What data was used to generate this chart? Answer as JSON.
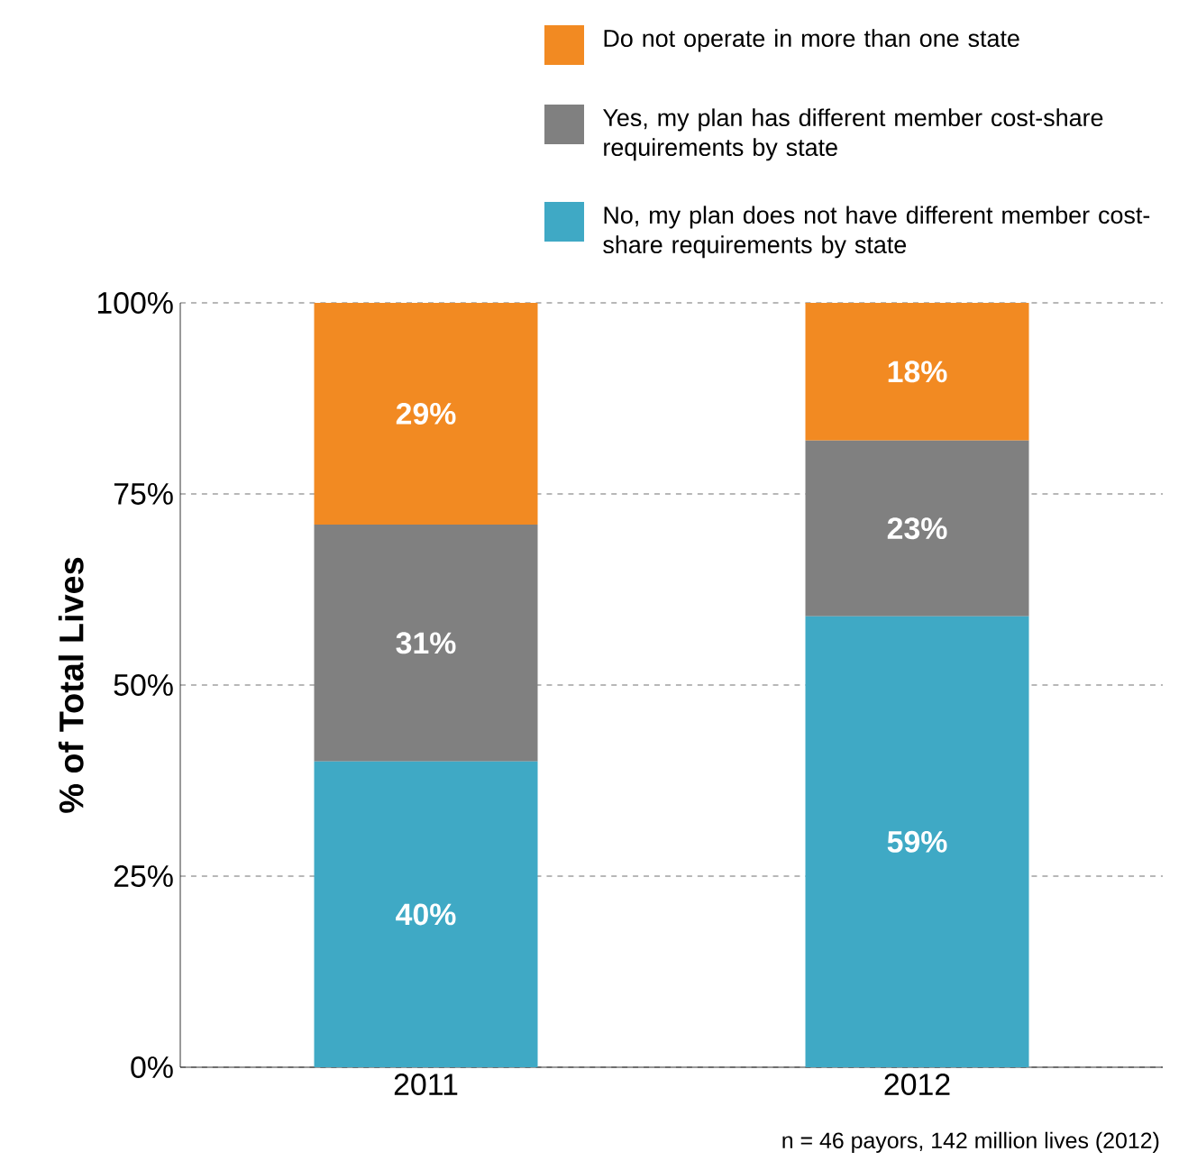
{
  "chart_data": {
    "type": "bar",
    "stacked": true,
    "ylabel": "% of Total Lives",
    "categories": [
      "2011",
      "2012"
    ],
    "series": [
      {
        "name": "No, my plan does not have different member cost-share requirements by state",
        "color": "#3fa9c5",
        "values": [
          40,
          59
        ]
      },
      {
        "name": "Yes, my plan has different member cost-share requirements by state",
        "color": "#808080",
        "values": [
          31,
          23
        ]
      },
      {
        "name": "Do not operate in more than one state",
        "color": "#f28a22",
        "values": [
          29,
          18
        ]
      }
    ],
    "ylim": [
      0,
      100
    ],
    "yticks": [
      {
        "value": 0,
        "label": "0%"
      },
      {
        "value": 25,
        "label": "25%"
      },
      {
        "value": 50,
        "label": "50%"
      },
      {
        "value": 75,
        "label": "75%"
      },
      {
        "value": 100,
        "label": "100%"
      }
    ],
    "value_labels": [
      [
        "40%",
        "59%"
      ],
      [
        "31%",
        "23%"
      ],
      [
        "29%",
        "18%"
      ]
    ],
    "grid": "y",
    "legend": "top",
    "annotations": [
      "n = 46 payors, 142 million lives (2012)"
    ]
  }
}
